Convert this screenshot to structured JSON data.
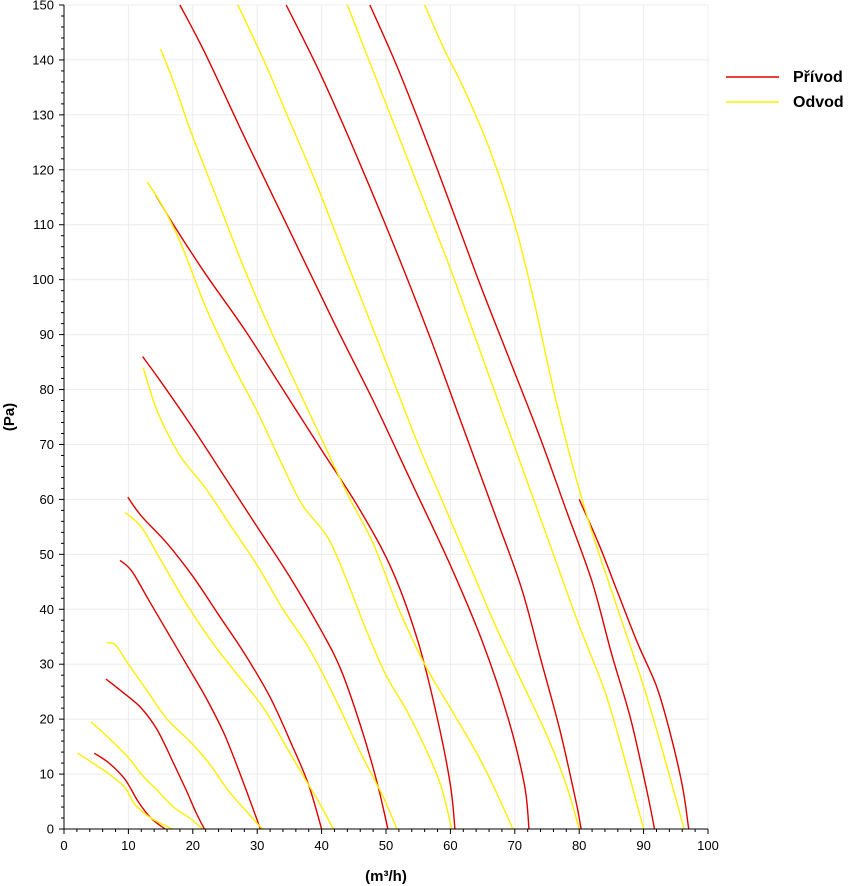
{
  "chart_data": {
    "type": "line",
    "title": "",
    "xlabel": "(m³/h)",
    "ylabel": "(Pa)",
    "xlim": [
      0,
      100
    ],
    "ylim": [
      0,
      150
    ],
    "xticks": [
      0,
      10,
      20,
      30,
      40,
      50,
      60,
      70,
      80,
      90,
      100
    ],
    "yticks": [
      0,
      10,
      20,
      30,
      40,
      50,
      60,
      70,
      80,
      90,
      100,
      110,
      120,
      130,
      140,
      150
    ],
    "grid": true,
    "legend_position": "top-right",
    "legend": [
      {
        "label": "Přívod",
        "color": "#dd0000"
      },
      {
        "label": "Odvod",
        "color": "#ffee00"
      }
    ],
    "series": [
      {
        "group": "Přívod",
        "color": "#dd0000",
        "points": [
          [
            4.7,
            13.8
          ],
          [
            7.0,
            12.0
          ],
          [
            9.5,
            9.0
          ],
          [
            11.5,
            5.0
          ],
          [
            13.5,
            2.0
          ],
          [
            15.7,
            0
          ]
        ]
      },
      {
        "group": "Přívod",
        "color": "#dd0000",
        "points": [
          [
            6.5,
            27.3
          ],
          [
            9.0,
            25.0
          ],
          [
            12.0,
            22.0
          ],
          [
            14.5,
            18.0
          ],
          [
            17.0,
            12.0
          ],
          [
            19.0,
            7.0
          ],
          [
            20.5,
            3.0
          ],
          [
            21.8,
            0
          ]
        ]
      },
      {
        "group": "Přívod",
        "color": "#dd0000",
        "points": [
          [
            8.7,
            48.9
          ],
          [
            10.5,
            47.0
          ],
          [
            13.0,
            42.0
          ],
          [
            16.0,
            36.0
          ],
          [
            19.0,
            30.0
          ],
          [
            22.0,
            24.0
          ],
          [
            25.0,
            17.0
          ],
          [
            28.0,
            8.0
          ],
          [
            30.5,
            0
          ]
        ]
      },
      {
        "group": "Přívod",
        "color": "#dd0000",
        "points": [
          [
            9.9,
            60.4
          ],
          [
            12.0,
            57.0
          ],
          [
            16.0,
            52.0
          ],
          [
            20.0,
            46.0
          ],
          [
            24.0,
            39.0
          ],
          [
            28.0,
            32.0
          ],
          [
            32.0,
            24.0
          ],
          [
            35.5,
            15.0
          ],
          [
            38.0,
            8.0
          ],
          [
            40.0,
            0
          ]
        ]
      },
      {
        "group": "Přívod",
        "color": "#dd0000",
        "points": [
          [
            12.2,
            86.0
          ],
          [
            15.0,
            81.5
          ],
          [
            20.0,
            73.0
          ],
          [
            25.0,
            64.0
          ],
          [
            30.0,
            55.0
          ],
          [
            35.0,
            46.0
          ],
          [
            40.0,
            36.0
          ],
          [
            43.0,
            29.0
          ],
          [
            46.0,
            19.0
          ],
          [
            48.5,
            9.0
          ],
          [
            50.3,
            0
          ]
        ]
      },
      {
        "group": "Přívod",
        "color": "#dd0000",
        "points": [
          [
            14.2,
            115.5
          ],
          [
            17.0,
            110.0
          ],
          [
            22.0,
            101.0
          ],
          [
            28.0,
            91.0
          ],
          [
            34.0,
            80.0
          ],
          [
            40.0,
            69.0
          ],
          [
            46.0,
            58.0
          ],
          [
            51.0,
            47.0
          ],
          [
            55.0,
            34.0
          ],
          [
            58.0,
            20.0
          ],
          [
            60.0,
            8.0
          ],
          [
            60.7,
            0
          ]
        ]
      },
      {
        "group": "Přívod",
        "color": "#dd0000",
        "points": [
          [
            18.0,
            150.0
          ],
          [
            22.0,
            141.0
          ],
          [
            28.0,
            126.0
          ],
          [
            35.0,
            109.0
          ],
          [
            42.0,
            92.0
          ],
          [
            48.0,
            78.0
          ],
          [
            54.0,
            63.0
          ],
          [
            60.0,
            48.0
          ],
          [
            65.0,
            34.0
          ],
          [
            69.0,
            20.0
          ],
          [
            71.5,
            8.0
          ],
          [
            72.2,
            0
          ]
        ]
      },
      {
        "group": "Přívod",
        "color": "#dd0000",
        "points": [
          [
            34.5,
            150.0
          ],
          [
            40.0,
            137.0
          ],
          [
            46.0,
            121.0
          ],
          [
            52.0,
            104.0
          ],
          [
            57.0,
            89.0
          ],
          [
            62.0,
            73.0
          ],
          [
            67.0,
            57.0
          ],
          [
            71.0,
            44.0
          ],
          [
            74.0,
            31.0
          ],
          [
            77.0,
            18.0
          ],
          [
            79.5,
            5.0
          ],
          [
            80.3,
            0
          ]
        ]
      },
      {
        "group": "Přívod",
        "color": "#dd0000",
        "points": [
          [
            47.5,
            150.0
          ],
          [
            52.0,
            138.0
          ],
          [
            58.0,
            120.0
          ],
          [
            64.0,
            101.0
          ],
          [
            69.0,
            86.0
          ],
          [
            74.0,
            71.0
          ],
          [
            78.0,
            58.0
          ],
          [
            82.0,
            45.0
          ],
          [
            85.0,
            32.0
          ],
          [
            88.0,
            20.0
          ],
          [
            90.5,
            7.0
          ],
          [
            91.7,
            0
          ]
        ]
      },
      {
        "group": "Přívod",
        "color": "#dd0000",
        "points": [
          [
            80.0,
            60.0
          ],
          [
            83.0,
            52.0
          ],
          [
            86.0,
            43.0
          ],
          [
            89.0,
            34.0
          ],
          [
            92.0,
            26.0
          ],
          [
            94.0,
            18.0
          ],
          [
            96.0,
            8.0
          ],
          [
            97.0,
            0
          ]
        ]
      },
      {
        "group": "Odvod",
        "color": "#ffee00",
        "points": [
          [
            2.1,
            13.8
          ],
          [
            4.5,
            12.0
          ],
          [
            7.0,
            10.0
          ],
          [
            9.5,
            7.5
          ],
          [
            11.0,
            4.5
          ],
          [
            13.5,
            2.0
          ],
          [
            16.8,
            0
          ]
        ]
      },
      {
        "group": "Odvod",
        "color": "#ffee00",
        "points": [
          [
            4.2,
            19.5
          ],
          [
            7.0,
            16.5
          ],
          [
            10.0,
            13.0
          ],
          [
            12.0,
            10.0
          ],
          [
            14.5,
            7.0
          ],
          [
            17.0,
            4.0
          ],
          [
            19.5,
            2.0
          ],
          [
            21.5,
            0
          ]
        ]
      },
      {
        "group": "Odvod",
        "color": "#ffee00",
        "points": [
          [
            6.6,
            33.9
          ],
          [
            8.0,
            33.5
          ],
          [
            10.0,
            30.0
          ],
          [
            13.0,
            25.0
          ],
          [
            16.0,
            20.0
          ],
          [
            19.5,
            16.0
          ],
          [
            22.5,
            12.0
          ],
          [
            25.5,
            7.0
          ],
          [
            28.5,
            3.0
          ],
          [
            30.8,
            0
          ]
        ]
      },
      {
        "group": "Odvod",
        "color": "#ffee00",
        "points": [
          [
            9.5,
            57.6
          ],
          [
            12.0,
            55.0
          ],
          [
            15.0,
            49.0
          ],
          [
            19.0,
            41.0
          ],
          [
            23.0,
            34.0
          ],
          [
            27.0,
            28.0
          ],
          [
            31.0,
            22.0
          ],
          [
            34.5,
            15.0
          ],
          [
            37.5,
            9.0
          ],
          [
            40.0,
            4.0
          ],
          [
            41.8,
            0
          ]
        ]
      },
      {
        "group": "Odvod",
        "color": "#ffee00",
        "points": [
          [
            12.3,
            84.0
          ],
          [
            14.5,
            76.0
          ],
          [
            18.0,
            68.0
          ],
          [
            22.0,
            62.0
          ],
          [
            26.0,
            55.0
          ],
          [
            30.0,
            48.0
          ],
          [
            34.0,
            40.0
          ],
          [
            38.0,
            33.0
          ],
          [
            42.0,
            24.0
          ],
          [
            46.0,
            14.0
          ],
          [
            49.5,
            6.0
          ],
          [
            51.7,
            0
          ]
        ]
      },
      {
        "group": "Odvod",
        "color": "#ffee00",
        "points": [
          [
            12.9,
            117.8
          ],
          [
            15.0,
            114.0
          ],
          [
            18.0,
            107.0
          ],
          [
            22.0,
            95.0
          ],
          [
            26.0,
            85.0
          ],
          [
            30.0,
            76.0
          ],
          [
            34.0,
            66.0
          ],
          [
            37.0,
            59.0
          ],
          [
            41.0,
            53.0
          ],
          [
            44.0,
            45.0
          ],
          [
            47.0,
            36.0
          ],
          [
            50.0,
            28.0
          ],
          [
            53.0,
            22.0
          ],
          [
            56.0,
            15.0
          ],
          [
            58.5,
            8.0
          ],
          [
            60.2,
            0
          ]
        ]
      },
      {
        "group": "Odvod",
        "color": "#ffee00",
        "points": [
          [
            15.0,
            142.0
          ],
          [
            17.0,
            136.0
          ],
          [
            20.0,
            126.0
          ],
          [
            24.0,
            114.0
          ],
          [
            28.0,
            102.0
          ],
          [
            32.0,
            91.0
          ],
          [
            36.0,
            81.0
          ],
          [
            40.0,
            71.0
          ],
          [
            44.0,
            61.0
          ],
          [
            48.0,
            52.0
          ],
          [
            52.0,
            40.0
          ],
          [
            56.0,
            30.0
          ],
          [
            60.0,
            22.0
          ],
          [
            64.0,
            14.0
          ],
          [
            67.0,
            7.0
          ],
          [
            69.7,
            0
          ]
        ]
      },
      {
        "group": "Odvod",
        "color": "#ffee00",
        "points": [
          [
            27.0,
            150.0
          ],
          [
            31.0,
            140.0
          ],
          [
            35.0,
            129.0
          ],
          [
            39.0,
            118.0
          ],
          [
            43.0,
            106.0
          ],
          [
            47.0,
            94.0
          ],
          [
            51.0,
            82.0
          ],
          [
            55.0,
            70.0
          ],
          [
            59.0,
            59.0
          ],
          [
            63.0,
            48.0
          ],
          [
            67.0,
            37.0
          ],
          [
            71.0,
            27.0
          ],
          [
            75.0,
            17.0
          ],
          [
            78.0,
            8.0
          ],
          [
            80.0,
            0
          ]
        ]
      },
      {
        "group": "Odvod",
        "color": "#ffee00",
        "points": [
          [
            44.0,
            150.0
          ],
          [
            48.0,
            138.0
          ],
          [
            52.0,
            126.0
          ],
          [
            56.0,
            114.0
          ],
          [
            60.0,
            102.0
          ],
          [
            64.0,
            89.0
          ],
          [
            68.0,
            76.0
          ],
          [
            72.0,
            63.0
          ],
          [
            76.0,
            50.0
          ],
          [
            80.0,
            37.0
          ],
          [
            84.0,
            25.0
          ],
          [
            87.0,
            13.0
          ],
          [
            90.0,
            0
          ]
        ]
      },
      {
        "group": "Odvod",
        "color": "#ffee00",
        "points": [
          [
            56.0,
            150.0
          ],
          [
            59.0,
            142.0
          ],
          [
            62.0,
            135.0
          ],
          [
            66.0,
            124.0
          ],
          [
            70.0,
            110.0
          ],
          [
            73.0,
            96.0
          ],
          [
            76.0,
            80.0
          ],
          [
            79.0,
            66.0
          ],
          [
            82.0,
            54.0
          ],
          [
            86.0,
            40.0
          ],
          [
            90.0,
            26.0
          ],
          [
            93.0,
            14.0
          ],
          [
            96.3,
            0
          ]
        ]
      }
    ]
  }
}
